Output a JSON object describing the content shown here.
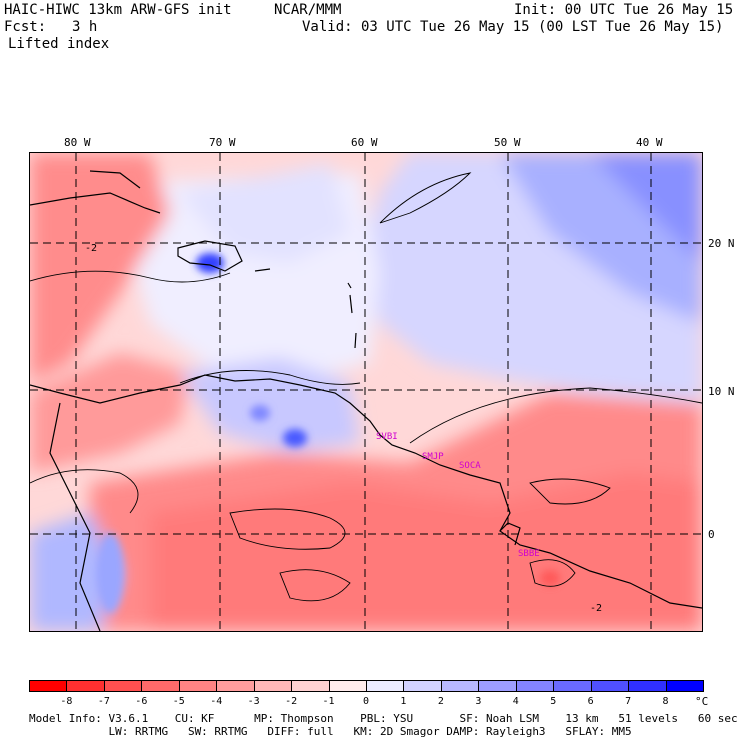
{
  "header": {
    "model": "HAIC-HIWC 13km ARW-GFS init",
    "org": "NCAR/MMM",
    "init": "Init: 00 UTC Tue 26 May 15",
    "fcst_label": "Fcst:",
    "fcst_value": "3 h",
    "valid": "Valid: 03 UTC Tue 26 May 15 (00 LST Tue 26 May 15)",
    "field": "Lifted index"
  },
  "axes": {
    "lon_labels": [
      "80 W",
      "70 W",
      "60 W",
      "50 W",
      "40 W"
    ],
    "lat_labels": [
      "20 N",
      "10 N",
      "0"
    ]
  },
  "stations": [
    "SVBI",
    "SMJP",
    "SOCA",
    "SBBE"
  ],
  "contour_labels": [
    "-2",
    "-2"
  ],
  "colorbar": {
    "ticks": [
      "-8",
      "-7",
      "-6",
      "-5",
      "-4",
      "-3",
      "-2",
      "-1",
      "0",
      "1",
      "2",
      "3",
      "4",
      "5",
      "6",
      "7",
      "8"
    ],
    "unit": "°C",
    "colors": [
      "#ff0000",
      "#ff3030",
      "#ff5050",
      "#ff6a6a",
      "#ff8484",
      "#ff9e9e",
      "#ffb8b8",
      "#ffd2d2",
      "#ffecec",
      "#ececff",
      "#d2d2ff",
      "#b8b8ff",
      "#9e9eff",
      "#8484ff",
      "#6a6aff",
      "#5050ff",
      "#3030ff",
      "#0000ff"
    ]
  },
  "footer": {
    "line1": "Model Info: V3.6.1    CU: KF      MP: Thompson    PBL: YSU       SF: Noah LSM    13 km   51 levels   60 sec",
    "line2": "            LW: RRTMG   SW: RRTMG   DIFF: full   KM: 2D Smagor DAMP: Rayleigh3   SFLAY: MM5"
  }
}
